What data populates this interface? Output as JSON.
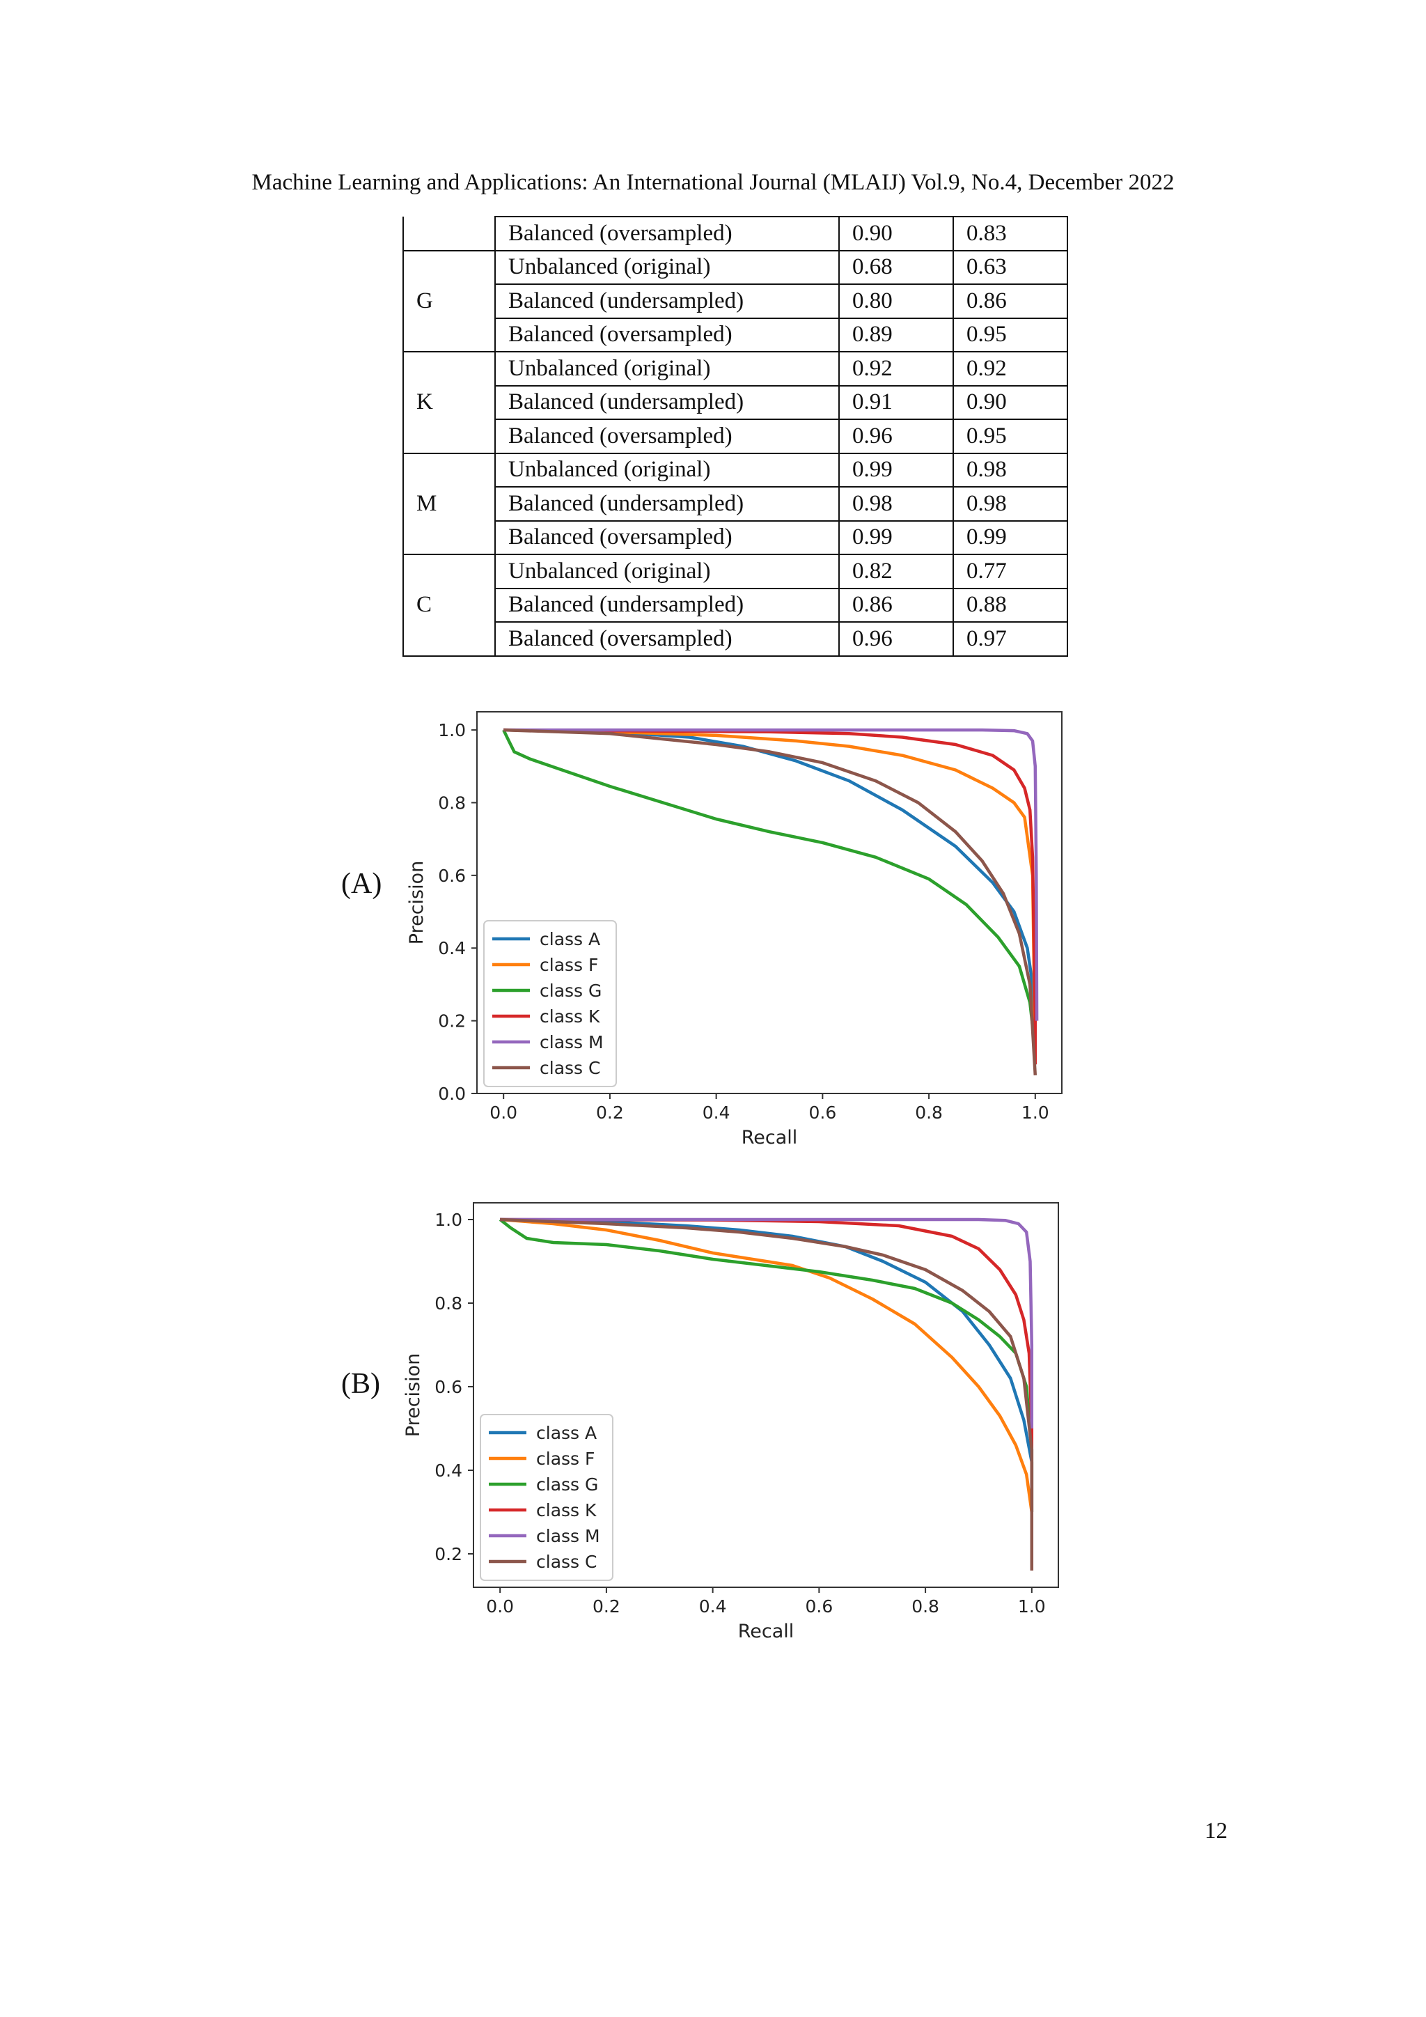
{
  "header": "Machine Learning and Applications: An International Journal (MLAIJ) Vol.9, No.4, December 2022",
  "table": {
    "rows": [
      {
        "group": "",
        "method": "Balanced (oversampled)",
        "v1": "0.90",
        "v2": "0.83"
      },
      {
        "group": "G",
        "method": "Unbalanced (original)",
        "v1": "0.68",
        "v2": "0.63"
      },
      {
        "group": "",
        "method": "Balanced (undersampled)",
        "v1": "0.80",
        "v2": "0.86"
      },
      {
        "group": "",
        "method": "Balanced (oversampled)",
        "v1": "0.89",
        "v2": "0.95"
      },
      {
        "group": "K",
        "method": "Unbalanced (original)",
        "v1": "0.92",
        "v2": "0.92"
      },
      {
        "group": "",
        "method": "Balanced (undersampled)",
        "v1": "0.91",
        "v2": "0.90"
      },
      {
        "group": "",
        "method": "Balanced (oversampled)",
        "v1": "0.96",
        "v2": "0.95"
      },
      {
        "group": "M",
        "method": "Unbalanced (original)",
        "v1": "0.99",
        "v2": "0.98"
      },
      {
        "group": "",
        "method": "Balanced (undersampled)",
        "v1": "0.98",
        "v2": "0.98"
      },
      {
        "group": "",
        "method": "Balanced (oversampled)",
        "v1": "0.99",
        "v2": "0.99"
      },
      {
        "group": "C",
        "method": "Unbalanced (original)",
        "v1": "0.82",
        "v2": "0.77"
      },
      {
        "group": "",
        "method": "Balanced (undersampled)",
        "v1": "0.86",
        "v2": "0.88"
      },
      {
        "group": "",
        "method": "Balanced (oversampled)",
        "v1": "0.96",
        "v2": "0.97"
      }
    ]
  },
  "panel_labels": {
    "a": "(A)",
    "b": "(B)"
  },
  "page_number": "12",
  "chart_data": [
    {
      "type": "line",
      "xlabel": "Recall",
      "ylabel": "Precision",
      "xlim": [
        -0.05,
        1.05
      ],
      "ylim": [
        0.0,
        1.05
      ],
      "xticks": [
        "0.0",
        "0.2",
        "0.4",
        "0.6",
        "0.8",
        "1.0"
      ],
      "yticks": [
        "0.0",
        "0.2",
        "0.4",
        "0.6",
        "0.8",
        "1.0"
      ],
      "legend_position": "lower-left",
      "series": [
        {
          "name": "class A",
          "color": "#1f77b4",
          "points": [
            [
              0,
              1.0
            ],
            [
              0.2,
              0.995
            ],
            [
              0.35,
              0.98
            ],
            [
              0.45,
              0.955
            ],
            [
              0.55,
              0.915
            ],
            [
              0.65,
              0.86
            ],
            [
              0.75,
              0.78
            ],
            [
              0.85,
              0.68
            ],
            [
              0.92,
              0.58
            ],
            [
              0.96,
              0.5
            ],
            [
              0.985,
              0.4
            ],
            [
              0.995,
              0.3
            ],
            [
              1.0,
              0.18
            ]
          ]
        },
        {
          "name": "class F",
          "color": "#ff7f0e",
          "points": [
            [
              0,
              1.0
            ],
            [
              0.2,
              0.995
            ],
            [
              0.4,
              0.985
            ],
            [
              0.55,
              0.97
            ],
            [
              0.65,
              0.955
            ],
            [
              0.75,
              0.93
            ],
            [
              0.85,
              0.89
            ],
            [
              0.92,
              0.84
            ],
            [
              0.96,
              0.8
            ],
            [
              0.98,
              0.76
            ],
            [
              0.995,
              0.6
            ],
            [
              1.0,
              0.1
            ]
          ]
        },
        {
          "name": "class G",
          "color": "#2ca02c",
          "points": [
            [
              0,
              1.0
            ],
            [
              0.01,
              0.97
            ],
            [
              0.02,
              0.94
            ],
            [
              0.05,
              0.92
            ],
            [
              0.1,
              0.895
            ],
            [
              0.2,
              0.845
            ],
            [
              0.3,
              0.8
            ],
            [
              0.4,
              0.755
            ],
            [
              0.5,
              0.72
            ],
            [
              0.6,
              0.69
            ],
            [
              0.7,
              0.65
            ],
            [
              0.8,
              0.59
            ],
            [
              0.87,
              0.52
            ],
            [
              0.93,
              0.43
            ],
            [
              0.97,
              0.35
            ],
            [
              0.99,
              0.25
            ],
            [
              1.0,
              0.12
            ]
          ]
        },
        {
          "name": "class K",
          "color": "#d62728",
          "points": [
            [
              0,
              1.0
            ],
            [
              0.3,
              0.997
            ],
            [
              0.5,
              0.995
            ],
            [
              0.65,
              0.99
            ],
            [
              0.75,
              0.98
            ],
            [
              0.85,
              0.96
            ],
            [
              0.92,
              0.93
            ],
            [
              0.96,
              0.89
            ],
            [
              0.98,
              0.84
            ],
            [
              0.99,
              0.78
            ],
            [
              0.995,
              0.65
            ],
            [
              1.0,
              0.2
            ],
            [
              1.0,
              0.08
            ]
          ]
        },
        {
          "name": "class M",
          "color": "#9467bd",
          "points": [
            [
              0,
              1.0
            ],
            [
              0.5,
              1.0
            ],
            [
              0.9,
              1.0
            ],
            [
              0.96,
              0.998
            ],
            [
              0.985,
              0.99
            ],
            [
              0.995,
              0.97
            ],
            [
              1.0,
              0.9
            ],
            [
              1.002,
              0.6
            ],
            [
              1.003,
              0.2
            ]
          ]
        },
        {
          "name": "class C",
          "color": "#8c564b",
          "points": [
            [
              0,
              1.0
            ],
            [
              0.2,
              0.99
            ],
            [
              0.3,
              0.975
            ],
            [
              0.4,
              0.96
            ],
            [
              0.5,
              0.94
            ],
            [
              0.6,
              0.91
            ],
            [
              0.7,
              0.86
            ],
            [
              0.78,
              0.8
            ],
            [
              0.85,
              0.72
            ],
            [
              0.9,
              0.64
            ],
            [
              0.94,
              0.55
            ],
            [
              0.97,
              0.44
            ],
            [
              0.99,
              0.3
            ],
            [
              1.0,
              0.05
            ]
          ]
        }
      ]
    },
    {
      "type": "line",
      "xlabel": "Recall",
      "ylabel": "Precision",
      "xlim": [
        -0.05,
        1.05
      ],
      "ylim": [
        0.12,
        1.04
      ],
      "xticks": [
        "0.0",
        "0.2",
        "0.4",
        "0.6",
        "0.8",
        "1.0"
      ],
      "yticks": [
        "0.2",
        "0.4",
        "0.6",
        "0.8",
        "1.0"
      ],
      "legend_position": "lower-left",
      "series": [
        {
          "name": "class A",
          "color": "#1f77b4",
          "points": [
            [
              0,
              1.0
            ],
            [
              0.2,
              0.995
            ],
            [
              0.35,
              0.985
            ],
            [
              0.45,
              0.975
            ],
            [
              0.55,
              0.96
            ],
            [
              0.65,
              0.935
            ],
            [
              0.72,
              0.9
            ],
            [
              0.8,
              0.85
            ],
            [
              0.87,
              0.78
            ],
            [
              0.92,
              0.7
            ],
            [
              0.96,
              0.62
            ],
            [
              0.985,
              0.52
            ],
            [
              1.0,
              0.42
            ],
            [
              1.0,
              0.3
            ]
          ]
        },
        {
          "name": "class F",
          "color": "#ff7f0e",
          "points": [
            [
              0,
              1.0
            ],
            [
              0.1,
              0.99
            ],
            [
              0.2,
              0.975
            ],
            [
              0.3,
              0.95
            ],
            [
              0.4,
              0.92
            ],
            [
              0.5,
              0.9
            ],
            [
              0.55,
              0.89
            ],
            [
              0.62,
              0.86
            ],
            [
              0.7,
              0.81
            ],
            [
              0.78,
              0.75
            ],
            [
              0.85,
              0.67
            ],
            [
              0.9,
              0.6
            ],
            [
              0.94,
              0.53
            ],
            [
              0.97,
              0.46
            ],
            [
              0.99,
              0.39
            ],
            [
              1.0,
              0.3
            ]
          ]
        },
        {
          "name": "class G",
          "color": "#2ca02c",
          "points": [
            [
              0,
              1.0
            ],
            [
              0.02,
              0.98
            ],
            [
              0.05,
              0.955
            ],
            [
              0.1,
              0.945
            ],
            [
              0.2,
              0.94
            ],
            [
              0.3,
              0.925
            ],
            [
              0.4,
              0.905
            ],
            [
              0.5,
              0.89
            ],
            [
              0.6,
              0.875
            ],
            [
              0.7,
              0.855
            ],
            [
              0.78,
              0.835
            ],
            [
              0.85,
              0.8
            ],
            [
              0.9,
              0.76
            ],
            [
              0.94,
              0.72
            ],
            [
              0.97,
              0.68
            ],
            [
              0.99,
              0.6
            ],
            [
              1.0,
              0.45
            ],
            [
              1.0,
              0.3
            ]
          ]
        },
        {
          "name": "class K",
          "color": "#d62728",
          "points": [
            [
              0,
              1.0
            ],
            [
              0.4,
              0.999
            ],
            [
              0.6,
              0.995
            ],
            [
              0.75,
              0.985
            ],
            [
              0.85,
              0.96
            ],
            [
              0.9,
              0.93
            ],
            [
              0.94,
              0.88
            ],
            [
              0.97,
              0.82
            ],
            [
              0.985,
              0.76
            ],
            [
              0.995,
              0.68
            ],
            [
              1.0,
              0.5
            ],
            [
              1.0,
              0.3
            ]
          ]
        },
        {
          "name": "class M",
          "color": "#9467bd",
          "points": [
            [
              0,
              1.0
            ],
            [
              0.5,
              1.0
            ],
            [
              0.9,
              1.0
            ],
            [
              0.95,
              0.998
            ],
            [
              0.975,
              0.99
            ],
            [
              0.99,
              0.97
            ],
            [
              0.997,
              0.9
            ],
            [
              1.0,
              0.7
            ],
            [
              1.0,
              0.5
            ]
          ]
        },
        {
          "name": "class C",
          "color": "#8c564b",
          "points": [
            [
              0,
              1.0
            ],
            [
              0.2,
              0.99
            ],
            [
              0.35,
              0.98
            ],
            [
              0.45,
              0.97
            ],
            [
              0.55,
              0.955
            ],
            [
              0.65,
              0.935
            ],
            [
              0.72,
              0.915
            ],
            [
              0.8,
              0.88
            ],
            [
              0.87,
              0.83
            ],
            [
              0.92,
              0.78
            ],
            [
              0.96,
              0.72
            ],
            [
              0.985,
              0.62
            ],
            [
              1.0,
              0.45
            ],
            [
              1.0,
              0.16
            ]
          ]
        }
      ]
    }
  ]
}
